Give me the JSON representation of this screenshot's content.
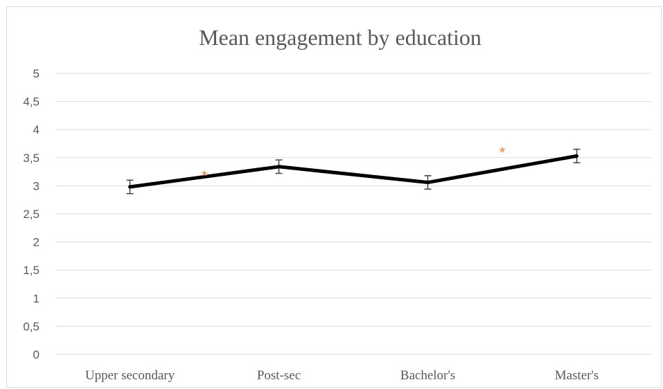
{
  "chart_data": {
    "type": "line",
    "title": "Mean engagement by education",
    "xlabel": "",
    "ylabel": "",
    "categories": [
      "Upper secondary",
      "Post-sec",
      "Bachelor's",
      "Master's"
    ],
    "series": [
      {
        "values": [
          2.98,
          3.34,
          3.06,
          3.53
        ],
        "error": [
          0.12,
          0.12,
          0.12,
          0.12
        ],
        "color": "#000000"
      }
    ],
    "ylim": [
      0,
      5
    ],
    "yticks": [
      0,
      0.5,
      1,
      1.5,
      2,
      2.5,
      3,
      3.5,
      4,
      4.5,
      5
    ],
    "ytick_labels": [
      "0",
      "0,5",
      "1",
      "1,5",
      "2",
      "2,5",
      "3",
      "3,5",
      "4",
      "4,5",
      "5"
    ],
    "grid": true,
    "legend": "none",
    "annotations": [
      {
        "text": "*",
        "between": [
          0,
          1
        ],
        "value": 3.25,
        "color": "#ed7d31"
      },
      {
        "text": "*",
        "between": [
          2,
          3
        ],
        "value": 3.67,
        "color": "#ed7d31"
      }
    ]
  }
}
